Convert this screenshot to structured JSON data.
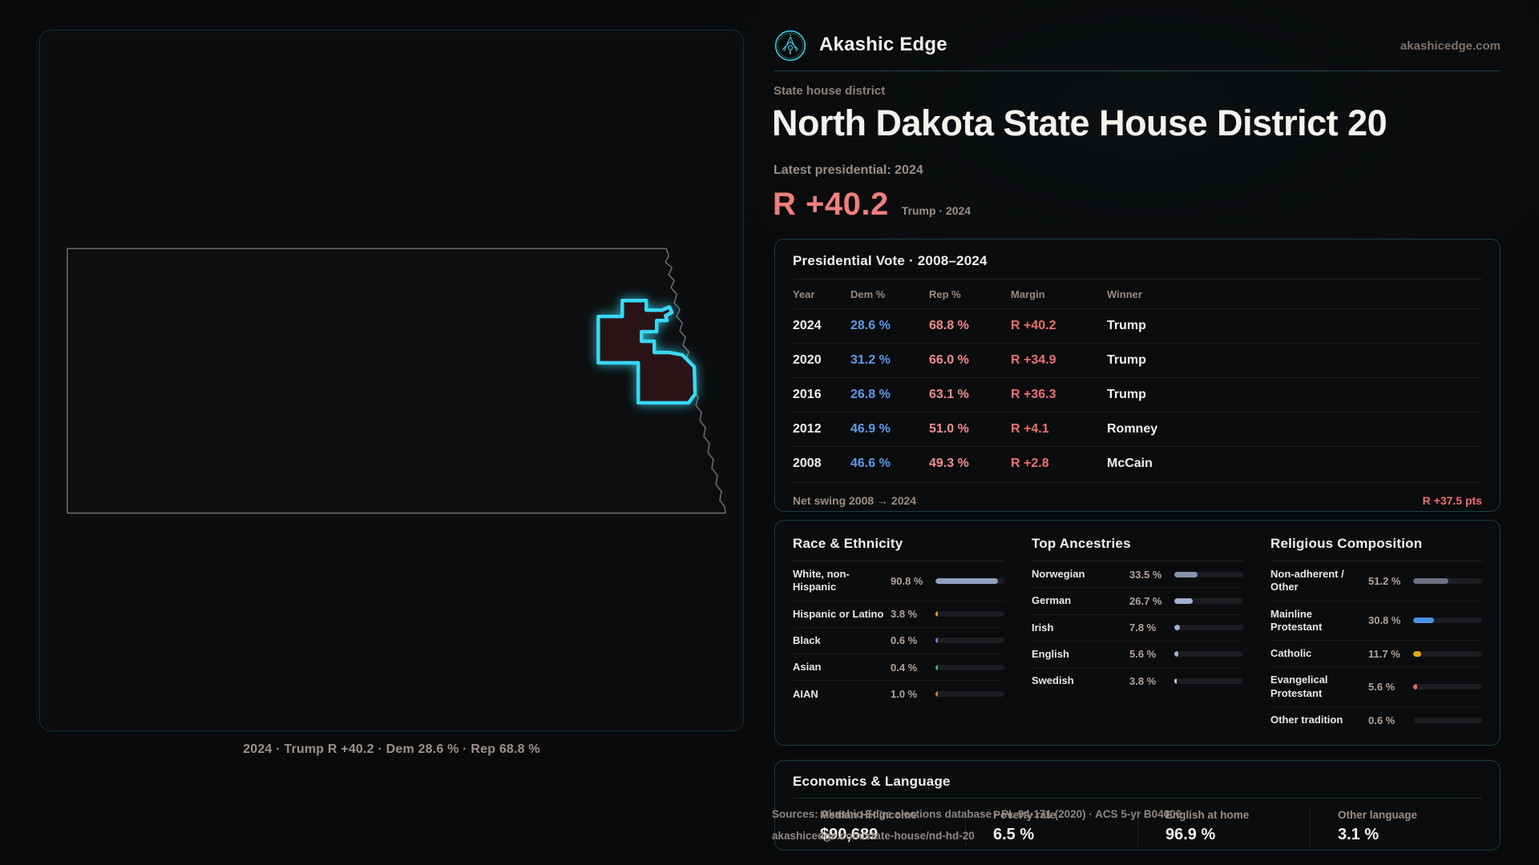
{
  "brand": {
    "name": "Akashic Edge",
    "domain": "akashicedge.com",
    "logo_color": "#3fc9de"
  },
  "page": {
    "eyebrow": "State house district",
    "title": "North Dakota State House District 20",
    "latest_label": "Latest presidential: 2024",
    "margin_value": "R +40.2",
    "margin_sub": "Trump · 2024"
  },
  "map": {
    "caption": "2024 · Trump R +40.2 · Dem 28.6 % · Rep 68.8 %",
    "district_color": "#38d8f2",
    "state_outline_color": "#6e6e6e"
  },
  "vote_table": {
    "title": "Presidential Vote · 2008–2024",
    "columns": [
      "Year",
      "Dem %",
      "Rep %",
      "Margin",
      "Winner"
    ],
    "rows": [
      {
        "year": "2024",
        "dem": "28.6 %",
        "rep": "68.8 %",
        "margin": "R +40.2",
        "winner": "Trump"
      },
      {
        "year": "2020",
        "dem": "31.2 %",
        "rep": "66.0 %",
        "margin": "R +34.9",
        "winner": "Trump"
      },
      {
        "year": "2016",
        "dem": "26.8 %",
        "rep": "63.1 %",
        "margin": "R +36.3",
        "winner": "Trump"
      },
      {
        "year": "2012",
        "dem": "46.9 %",
        "rep": "51.0 %",
        "margin": "R +4.1",
        "winner": "Romney"
      },
      {
        "year": "2008",
        "dem": "46.6 %",
        "rep": "49.3 %",
        "margin": "R +2.8",
        "winner": "McCain"
      }
    ],
    "footer_label": "Net swing 2008 → 2024",
    "footer_value": "R +37.5 pts"
  },
  "demographics": {
    "groups": [
      {
        "title": "Race & Ethnicity",
        "rows": [
          {
            "label": "White, non-Hispanic",
            "value": "90.8 %",
            "pct": 90.8,
            "color": "#8ea0bb"
          },
          {
            "label": "Hispanic or Latino",
            "value": "3.8 %",
            "pct": 3.8,
            "color": "#e89a2e"
          },
          {
            "label": "Black",
            "value": "0.6 %",
            "pct": 0.6,
            "color": "#7c7ae0"
          },
          {
            "label": "Asian",
            "value": "0.4 %",
            "pct": 0.4,
            "color": "#2eb98a"
          },
          {
            "label": "AIAN",
            "value": "1.0 %",
            "pct": 1.0,
            "color": "#d97c2e"
          }
        ]
      },
      {
        "title": "Top Ancestries",
        "rows": [
          {
            "label": "Norwegian",
            "value": "33.5 %",
            "pct": 33.5,
            "color": "#8494ab"
          },
          {
            "label": "German",
            "value": "26.7 %",
            "pct": 26.7,
            "color": "#9fb3cf"
          },
          {
            "label": "Irish",
            "value": "7.8 %",
            "pct": 7.8,
            "color": "#9fb3cf"
          },
          {
            "label": "English",
            "value": "5.6 %",
            "pct": 5.6,
            "color": "#9fb3cf"
          },
          {
            "label": "Swedish",
            "value": "3.8 %",
            "pct": 3.8,
            "color": "#c9ccd4"
          }
        ]
      },
      {
        "title": "Religious Composition",
        "rows": [
          {
            "label": "Non-adherent / Other",
            "value": "51.2 %",
            "pct": 51.2,
            "color": "#6b7280"
          },
          {
            "label": "Mainline Protestant",
            "value": "30.8 %",
            "pct": 30.8,
            "color": "#4a90e2"
          },
          {
            "label": "Catholic",
            "value": "11.7 %",
            "pct": 11.7,
            "color": "#e0a818"
          },
          {
            "label": "Evangelical Protestant",
            "value": "5.6 %",
            "pct": 5.6,
            "color": "#e06a6a"
          },
          {
            "label": "Other tradition",
            "value": "0.6 %",
            "pct": 0.6,
            "color": "#17181b"
          }
        ]
      }
    ]
  },
  "economics": {
    "title": "Economics & Language",
    "stats": [
      {
        "label": "Median HH income",
        "value": "$90,689"
      },
      {
        "label": "Poverty rate",
        "value": "6.5 %"
      },
      {
        "label": "English at home",
        "value": "96.9 %"
      },
      {
        "label": "Other language",
        "value": "3.1 %"
      }
    ]
  },
  "sources": {
    "line1": "Sources: Akashic Edge elections database · PL 94-171 (2020) · ACS 5-yr B04006",
    "line2": "akashicedge.com/state-house/nd-hd-20"
  }
}
